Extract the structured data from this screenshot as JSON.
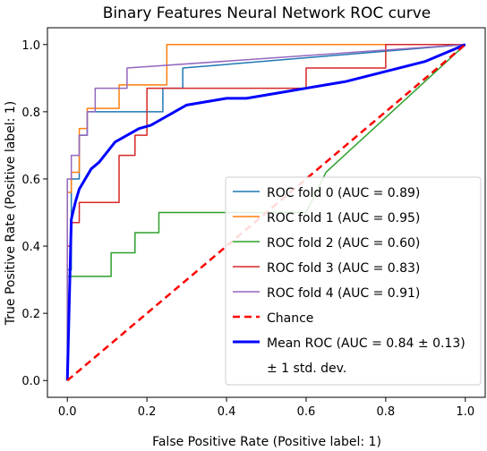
{
  "chart_data": {
    "type": "line",
    "title": "Binary Features Neural Network ROC curve",
    "xlabel": "False Positive Rate (Positive label: 1)",
    "ylabel": "True Positive Rate (Positive label: 1)",
    "xlim": [
      -0.05,
      1.05
    ],
    "ylim": [
      -0.05,
      1.05
    ],
    "xticks": [
      "0.0",
      "0.2",
      "0.4",
      "0.6",
      "0.8",
      "1.0"
    ],
    "yticks": [
      "0.0",
      "0.2",
      "0.4",
      "0.6",
      "0.8",
      "1.0"
    ],
    "grid": false,
    "legend_position": "lower-right",
    "series": [
      {
        "name": "ROC fold 0 (AUC = 0.89)",
        "color": "#1f77b4",
        "x": [
          0,
          0,
          0.01,
          0.01,
          0.03,
          0.03,
          0.05,
          0.05,
          0.11,
          0.11,
          0.24,
          0.24,
          0.29,
          0.29,
          1.0
        ],
        "y": [
          0,
          0.33,
          0.33,
          0.6,
          0.6,
          0.73,
          0.73,
          0.8,
          0.8,
          0.8,
          0.8,
          0.87,
          0.87,
          0.93,
          1.0
        ]
      },
      {
        "name": "ROC fold 1 (AUC = 0.95)",
        "color": "#ff7f0e",
        "x": [
          0,
          0,
          0.01,
          0.01,
          0.03,
          0.03,
          0.05,
          0.05,
          0.13,
          0.13,
          0.25,
          0.25,
          1.0
        ],
        "y": [
          0,
          0.56,
          0.56,
          0.62,
          0.62,
          0.75,
          0.75,
          0.81,
          0.81,
          0.88,
          0.88,
          1.0,
          1.0
        ]
      },
      {
        "name": "ROC fold 2 (AUC = 0.60)",
        "color": "#2ca02c",
        "x": [
          0,
          0,
          0.11,
          0.11,
          0.17,
          0.17,
          0.23,
          0.23,
          0.6,
          0.65,
          1.0
        ],
        "y": [
          0,
          0.31,
          0.31,
          0.38,
          0.38,
          0.44,
          0.44,
          0.5,
          0.5,
          0.62,
          1.0
        ]
      },
      {
        "name": "ROC fold 3 (AUC = 0.83)",
        "color": "#d62728",
        "x": [
          0,
          0,
          0.01,
          0.01,
          0.03,
          0.03,
          0.13,
          0.13,
          0.17,
          0.17,
          0.2,
          0.2,
          0.28,
          0.28,
          0.6,
          0.6,
          0.8,
          0.8,
          1.0
        ],
        "y": [
          0,
          0.4,
          0.4,
          0.47,
          0.47,
          0.53,
          0.53,
          0.67,
          0.67,
          0.73,
          0.73,
          0.87,
          0.87,
          0.87,
          0.87,
          0.93,
          0.93,
          1.0,
          1.0
        ]
      },
      {
        "name": "ROC fold 4 (AUC = 0.91)",
        "color": "#9467bd",
        "x": [
          0,
          0,
          0.01,
          0.01,
          0.03,
          0.03,
          0.05,
          0.05,
          0.07,
          0.07,
          0.15,
          0.15,
          1.0
        ],
        "y": [
          0,
          0.6,
          0.6,
          0.67,
          0.67,
          0.73,
          0.73,
          0.8,
          0.8,
          0.87,
          0.87,
          0.93,
          1.0
        ]
      },
      {
        "name": "Mean ROC (AUC = 0.84 ± 0.13)",
        "color": "#0000ff",
        "x": [
          0,
          0.01,
          0.02,
          0.03,
          0.04,
          0.05,
          0.06,
          0.08,
          0.1,
          0.12,
          0.15,
          0.18,
          0.21,
          0.24,
          0.27,
          0.3,
          0.35,
          0.4,
          0.45,
          0.5,
          0.55,
          0.6,
          0.7,
          0.8,
          0.9,
          1.0
        ],
        "y": [
          0,
          0.48,
          0.53,
          0.57,
          0.59,
          0.61,
          0.63,
          0.65,
          0.68,
          0.71,
          0.73,
          0.75,
          0.76,
          0.78,
          0.8,
          0.82,
          0.83,
          0.84,
          0.84,
          0.85,
          0.86,
          0.87,
          0.89,
          0.92,
          0.95,
          1.0
        ],
        "linewidth": 3
      },
      {
        "name": "Chance",
        "color": "#ff0000",
        "dashed": true,
        "x": [
          0,
          1
        ],
        "y": [
          0,
          1
        ],
        "linewidth": 2.5
      }
    ],
    "std_band": {
      "name": "± 1 std. dev.",
      "color": "#808080"
    },
    "legend_labels": [
      "ROC fold 0 (AUC = 0.89)",
      "ROC fold 1 (AUC = 0.95)",
      "ROC fold 2 (AUC = 0.60)",
      "ROC fold 3 (AUC = 0.83)",
      "ROC fold 4 (AUC = 0.91)",
      "Chance",
      "Mean ROC (AUC = 0.84 ± 0.13)",
      "± 1 std. dev."
    ]
  }
}
